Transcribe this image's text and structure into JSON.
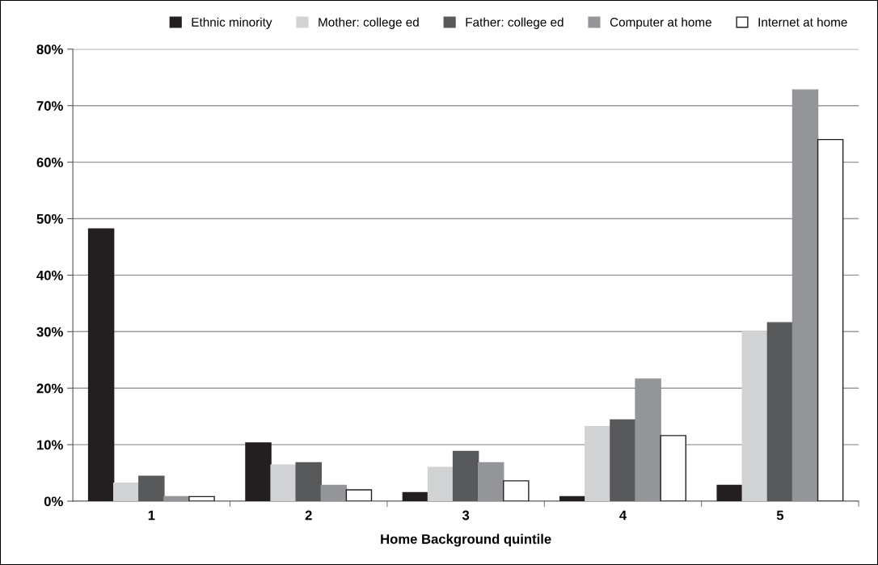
{
  "chart_data": {
    "type": "bar",
    "xlabel": "Home Background quintile",
    "categories": [
      "1",
      "2",
      "3",
      "4",
      "5"
    ],
    "series": [
      {
        "name": "Ethnic minority",
        "color": "#231f20",
        "values": [
          48.2,
          10.3,
          1.5,
          0.8,
          2.8
        ]
      },
      {
        "name": "Mother: college ed",
        "color": "#d1d2d4",
        "values": [
          3.2,
          6.4,
          6.0,
          13.2,
          30.0
        ]
      },
      {
        "name": "Father: college ed",
        "color": "#58595b",
        "values": [
          4.4,
          6.8,
          8.8,
          14.4,
          31.6
        ]
      },
      {
        "name": "Computer at home",
        "color": "#939598",
        "values": [
          0.8,
          2.8,
          6.8,
          21.6,
          72.8
        ]
      },
      {
        "name": "Internet at home",
        "color": "#ffffff",
        "values": [
          0.8,
          2.0,
          3.6,
          11.6,
          64.0
        ]
      }
    ],
    "ylim": [
      0,
      80
    ],
    "yticks": [
      {
        "value": 0,
        "label": "0%"
      },
      {
        "value": 10,
        "label": "10%"
      },
      {
        "value": 20,
        "label": "20%"
      },
      {
        "value": 30,
        "label": "30%"
      },
      {
        "value": 40,
        "label": "40%"
      },
      {
        "value": 50,
        "label": "50%"
      },
      {
        "value": 60,
        "label": "60%"
      },
      {
        "value": 70,
        "label": "70%"
      },
      {
        "value": 80,
        "label": "80%"
      }
    ],
    "grid": "y",
    "legend": "top"
  }
}
